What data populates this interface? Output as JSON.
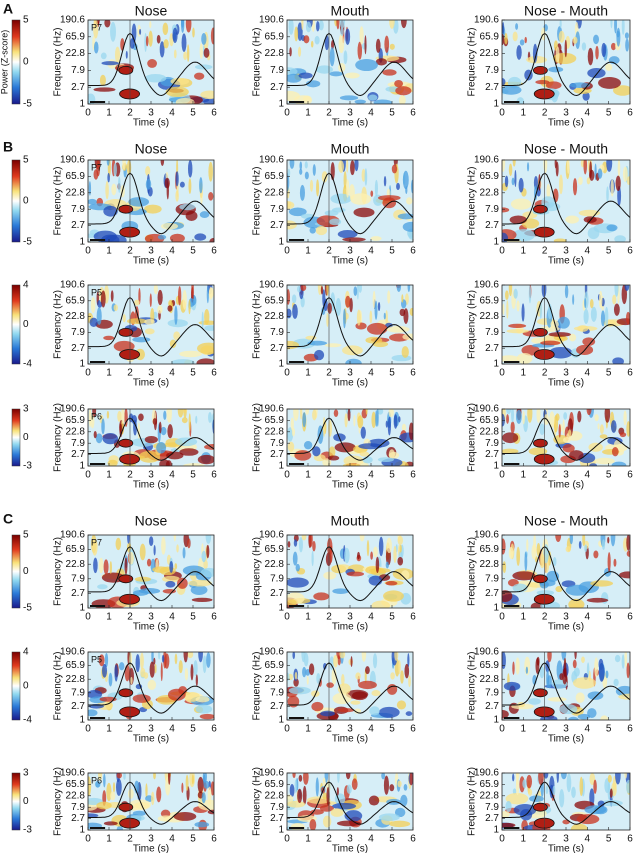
{
  "columns": [
    "Nose",
    "Mouth",
    "Nose - Mouth"
  ],
  "y_axis_label": "Frequency (Hz)",
  "x_axis_label": "Time (s)",
  "colorbar_label": "Power (Z-score)",
  "y_ticks": [
    "190.6",
    "65.9",
    "22.8",
    "7.9",
    "2.7",
    "1"
  ],
  "x_ticks": [
    "0",
    "1",
    "2",
    "3",
    "4",
    "5",
    "6"
  ],
  "sections": [
    {
      "letter": "A",
      "rows": [
        {
          "channel": "P7",
          "colorbar": [
            "5",
            "0",
            "-5"
          ]
        }
      ]
    },
    {
      "letter": "B",
      "rows": [
        {
          "channel": "P7",
          "colorbar": [
            "5",
            "0",
            "-5"
          ]
        },
        {
          "channel": "P5",
          "colorbar": [
            "4",
            "0",
            "-4"
          ]
        },
        {
          "channel": "P6",
          "colorbar": [
            "3",
            "0",
            "-3"
          ]
        }
      ]
    },
    {
      "letter": "C",
      "rows": [
        {
          "channel": "P7",
          "colorbar": [
            "5",
            "0",
            "-5"
          ]
        },
        {
          "channel": "P5",
          "colorbar": [
            "4",
            "0",
            "-4"
          ]
        },
        {
          "channel": "P6",
          "colorbar": [
            "3",
            "0",
            "-3"
          ]
        }
      ]
    }
  ]
}
